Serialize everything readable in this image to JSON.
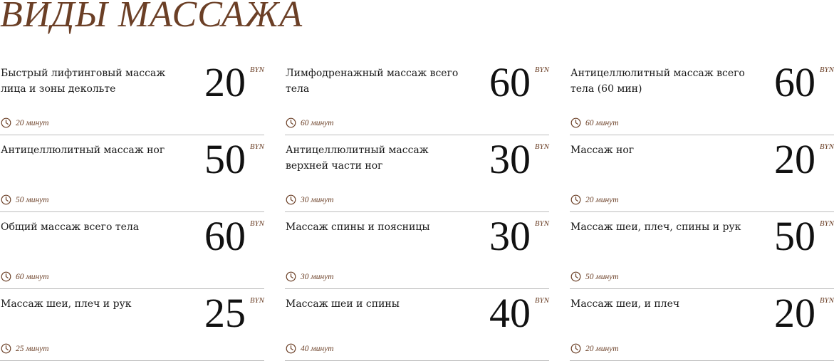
{
  "page": {
    "title": "ВИДЫ МАССАЖА"
  },
  "colors": {
    "accent": "#6b3f26",
    "text": "#1a1a1a",
    "divider": "#bdbdbd"
  },
  "services": [
    {
      "name": "Быстрый лифтинговый массаж лица и зоны декольте",
      "price": "20",
      "currency": "BYN",
      "duration": "20 минут"
    },
    {
      "name": "Лимфодренажный массаж всего тела",
      "price": "60",
      "currency": "BYN",
      "duration": "60 минут"
    },
    {
      "name": "Антицеллюлитный массаж всего тела (60 мин)",
      "price": "60",
      "currency": "BYN",
      "duration": "60 минут"
    },
    {
      "name": "Антицеллюлитный массаж ног",
      "price": "50",
      "currency": "BYN",
      "duration": "50 минут"
    },
    {
      "name": "Антицеллюлитный массаж верхней части ног",
      "price": "30",
      "currency": "BYN",
      "duration": "30 минут"
    },
    {
      "name": "Массаж ног",
      "price": "20",
      "currency": "BYN",
      "duration": "20 минут"
    },
    {
      "name": "Общий массаж всего тела",
      "price": "60",
      "currency": "BYN",
      "duration": "60 минут"
    },
    {
      "name": "Массаж спины и поясницы",
      "price": "30",
      "currency": "BYN",
      "duration": "30 минут"
    },
    {
      "name": "Массаж шеи, плеч, спины и рук",
      "price": "50",
      "currency": "BYN",
      "duration": "50 минут"
    },
    {
      "name": "Массаж шеи, плеч и рук",
      "price": "25",
      "currency": "BYN",
      "duration": "25 минут"
    },
    {
      "name": "Массаж шеи и спины",
      "price": "40",
      "currency": "BYN",
      "duration": "40 минут"
    },
    {
      "name": "Массаж шеи, и плеч",
      "price": "20",
      "currency": "BYN",
      "duration": "20 минут"
    }
  ]
}
